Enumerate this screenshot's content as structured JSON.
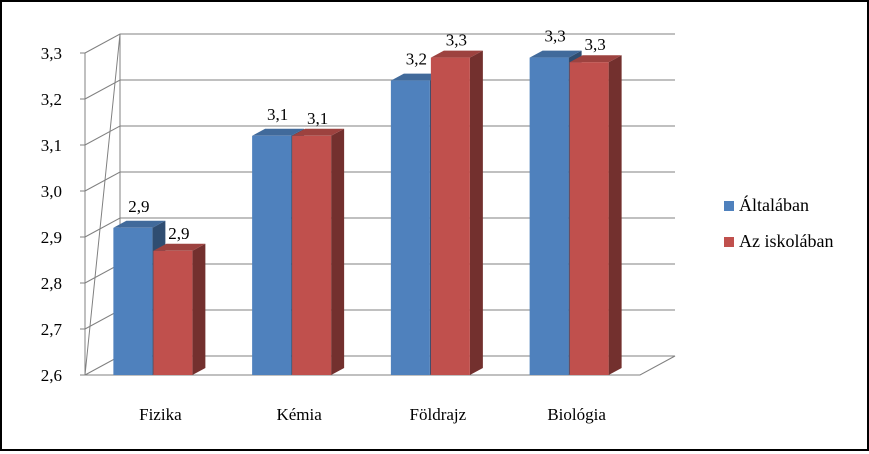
{
  "chart_data": {
    "type": "bar",
    "categories": [
      "Fizika",
      "Kémia",
      "Földrajz",
      "Biológia"
    ],
    "series": [
      {
        "name": "Általában",
        "color": "#4F81BD",
        "values": [
          2.92,
          3.12,
          3.24,
          3.29
        ],
        "labels": [
          "2,9",
          "3,1",
          "3,2",
          "3,3"
        ]
      },
      {
        "name": "Az iskolában",
        "color": "#C0504D",
        "values": [
          2.87,
          3.12,
          3.29,
          3.28
        ],
        "labels": [
          "2,9",
          "3,1",
          "3,3",
          "3,3"
        ]
      }
    ],
    "ylim": [
      2.6,
      3.3
    ],
    "yticks": [
      "2,6",
      "2,7",
      "2,8",
      "2,9",
      "3,0",
      "3,1",
      "3,2",
      "3,3"
    ],
    "grid": true,
    "legend_position": "right",
    "three_d": true
  }
}
